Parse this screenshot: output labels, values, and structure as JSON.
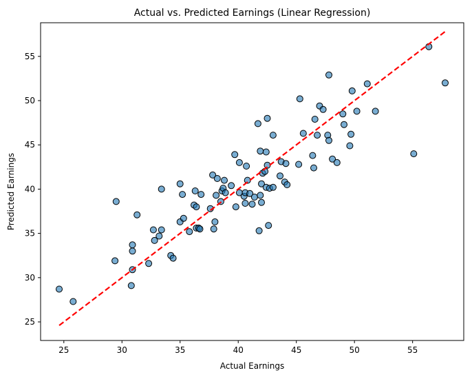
{
  "chart_data": {
    "type": "scatter",
    "title": "Actual vs. Predicted Earnings (Linear Regression)",
    "xlabel": "Actual Earnings",
    "ylabel": "Predicted Earnings",
    "xlim": [
      23.0,
      59.4
    ],
    "ylim": [
      22.9,
      58.8
    ],
    "xticks": [
      25,
      30,
      35,
      40,
      45,
      50,
      55
    ],
    "yticks": [
      25,
      30,
      35,
      40,
      45,
      50,
      55
    ],
    "grid": false,
    "point_color": "#1f77b4",
    "point_edge_color": "#000000",
    "reference_line": {
      "color": "#ff0000",
      "style": "dashed",
      "from": [
        24.6,
        24.6
      ],
      "to": [
        57.8,
        57.8
      ]
    },
    "points": [
      [
        24.6,
        28.7
      ],
      [
        25.8,
        27.3
      ],
      [
        29.4,
        31.9
      ],
      [
        29.5,
        38.6
      ],
      [
        30.8,
        29.1
      ],
      [
        30.9,
        30.9
      ],
      [
        30.9,
        33.0
      ],
      [
        30.9,
        33.7
      ],
      [
        31.3,
        37.1
      ],
      [
        32.3,
        31.6
      ],
      [
        32.7,
        35.4
      ],
      [
        32.8,
        34.2
      ],
      [
        33.2,
        34.7
      ],
      [
        33.4,
        35.4
      ],
      [
        33.4,
        40.0
      ],
      [
        34.2,
        32.5
      ],
      [
        34.4,
        32.2
      ],
      [
        35.0,
        36.3
      ],
      [
        35.0,
        40.6
      ],
      [
        35.2,
        39.4
      ],
      [
        35.3,
        36.7
      ],
      [
        35.8,
        35.2
      ],
      [
        36.2,
        38.2
      ],
      [
        36.3,
        39.8
      ],
      [
        36.4,
        35.6
      ],
      [
        36.4,
        38.0
      ],
      [
        36.6,
        35.6
      ],
      [
        36.7,
        35.5
      ],
      [
        36.8,
        39.4
      ],
      [
        37.6,
        37.8
      ],
      [
        37.8,
        41.6
      ],
      [
        37.9,
        35.5
      ],
      [
        38.0,
        36.3
      ],
      [
        38.1,
        39.3
      ],
      [
        38.2,
        41.2
      ],
      [
        38.5,
        38.6
      ],
      [
        38.6,
        39.8
      ],
      [
        38.7,
        40.1
      ],
      [
        38.8,
        41.0
      ],
      [
        38.9,
        39.6
      ],
      [
        39.4,
        40.4
      ],
      [
        39.7,
        43.9
      ],
      [
        39.8,
        38.0
      ],
      [
        40.1,
        43.0
      ],
      [
        40.1,
        39.6
      ],
      [
        40.5,
        39.2
      ],
      [
        40.6,
        38.4
      ],
      [
        40.6,
        39.6
      ],
      [
        40.7,
        42.6
      ],
      [
        40.8,
        41.0
      ],
      [
        41.0,
        39.5
      ],
      [
        41.2,
        38.3
      ],
      [
        41.4,
        39.1
      ],
      [
        41.7,
        47.4
      ],
      [
        41.8,
        35.3
      ],
      [
        41.9,
        39.3
      ],
      [
        41.9,
        44.3
      ],
      [
        42.0,
        38.5
      ],
      [
        42.0,
        40.6
      ],
      [
        42.1,
        41.8
      ],
      [
        42.3,
        42.0
      ],
      [
        42.4,
        40.2
      ],
      [
        42.4,
        44.2
      ],
      [
        42.5,
        42.7
      ],
      [
        42.5,
        48.0
      ],
      [
        42.6,
        35.9
      ],
      [
        42.7,
        40.1
      ],
      [
        43.0,
        40.2
      ],
      [
        43.0,
        46.1
      ],
      [
        43.6,
        41.5
      ],
      [
        43.7,
        43.1
      ],
      [
        44.0,
        40.8
      ],
      [
        44.1,
        42.9
      ],
      [
        44.2,
        40.5
      ],
      [
        45.2,
        42.8
      ],
      [
        45.3,
        50.2
      ],
      [
        45.6,
        46.3
      ],
      [
        46.4,
        43.8
      ],
      [
        46.5,
        42.4
      ],
      [
        46.6,
        47.9
      ],
      [
        46.8,
        46.1
      ],
      [
        47.0,
        49.4
      ],
      [
        47.3,
        49.0
      ],
      [
        47.7,
        46.1
      ],
      [
        47.8,
        52.9
      ],
      [
        47.8,
        45.5
      ],
      [
        48.1,
        43.4
      ],
      [
        48.5,
        43.0
      ],
      [
        49.0,
        48.5
      ],
      [
        49.1,
        47.3
      ],
      [
        49.6,
        44.9
      ],
      [
        49.7,
        46.2
      ],
      [
        49.8,
        51.1
      ],
      [
        50.2,
        48.8
      ],
      [
        51.1,
        51.9
      ],
      [
        51.8,
        48.8
      ],
      [
        55.1,
        44.0
      ],
      [
        56.4,
        56.1
      ],
      [
        57.8,
        52.0
      ]
    ]
  }
}
